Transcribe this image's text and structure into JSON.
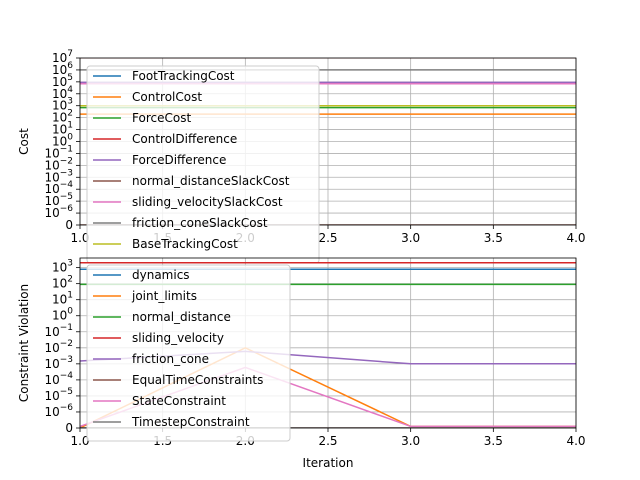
{
  "chart_data": [
    {
      "type": "line",
      "ylabel": "Cost",
      "xlabel": "",
      "xlim": [
        1.0,
        4.0
      ],
      "yscale": "symlog",
      "linthresh": 1e-06,
      "ylim_exp": [
        -6,
        7
      ],
      "x_ticks": [
        "1.0",
        "1.5",
        "2.0",
        "2.5",
        "3.0",
        "3.5",
        "4.0"
      ],
      "y_ticks": [
        "0",
        "10^-6",
        "10^-5",
        "10^-4",
        "10^-3",
        "10^-2",
        "10^-1",
        "10^0",
        "10^1",
        "10^2",
        "10^3",
        "10^4",
        "10^5",
        "10^6",
        "10^7"
      ],
      "grid": true,
      "legend_position": "upper-left",
      "x": [
        1,
        2,
        3,
        4
      ],
      "series": [
        {
          "name": "FootTrackingCost",
          "color": "#1f77b4",
          "values": [
            80000,
            80000,
            80000,
            80000
          ]
        },
        {
          "name": "ControlCost",
          "color": "#ff7f0e",
          "values": [
            200,
            200,
            200,
            200
          ]
        },
        {
          "name": "ForceCost",
          "color": "#2ca02c",
          "values": [
            700,
            700,
            700,
            700
          ]
        },
        {
          "name": "ControlDifference",
          "color": "#d62728",
          "values": [
            11000000.0,
            11000000.0,
            11000000.0,
            11000000.0
          ]
        },
        {
          "name": "ForceDifference",
          "color": "#9467bd",
          "values": [
            90000,
            90000,
            90000,
            90000
          ]
        },
        {
          "name": "normal_distanceSlackCost",
          "color": "#8c564b",
          "values": [
            0,
            0,
            0,
            0
          ]
        },
        {
          "name": "sliding_velocitySlackCost",
          "color": "#e377c2",
          "values": [
            70000,
            70000,
            70000,
            70000
          ]
        },
        {
          "name": "friction_coneSlackCost",
          "color": "#7f7f7f",
          "values": [
            1000000,
            1000000,
            1000000,
            1000000
          ]
        },
        {
          "name": "BaseTrackingCost",
          "color": "#bcbd22",
          "values": [
            1000,
            1000,
            1000,
            1000
          ]
        }
      ]
    },
    {
      "type": "line",
      "ylabel": "Constraint Violation",
      "xlabel": "Iteration",
      "xlim": [
        1.0,
        4.0
      ],
      "yscale": "symlog",
      "linthresh": 1e-06,
      "ylim_exp": [
        -6,
        3.6
      ],
      "x_ticks": [
        "1.0",
        "1.5",
        "2.0",
        "2.5",
        "3.0",
        "3.5",
        "4.0"
      ],
      "y_ticks": [
        "0",
        "10^-6",
        "10^-5",
        "10^-4",
        "10^-3",
        "10^-2",
        "10^-1",
        "10^0",
        "10^1",
        "10^2",
        "10^3"
      ],
      "grid": true,
      "legend_position": "upper-left",
      "x": [
        1,
        2,
        3,
        4
      ],
      "series": [
        {
          "name": "dynamics",
          "color": "#1f77b4",
          "values": [
            800,
            800,
            800,
            800
          ]
        },
        {
          "name": "joint_limits",
          "color": "#ff7f0e",
          "values": [
            0,
            0.01,
            1e-07,
            1e-07
          ]
        },
        {
          "name": "normal_distance",
          "color": "#2ca02c",
          "values": [
            90,
            90,
            90,
            90
          ]
        },
        {
          "name": "sliding_velocity",
          "color": "#d62728",
          "values": [
            2000,
            2000,
            2000,
            2000
          ]
        },
        {
          "name": "friction_cone",
          "color": "#9467bd",
          "values": [
            0.0015,
            0.006,
            0.001,
            0.001
          ]
        },
        {
          "name": "EqualTimeConstraints",
          "color": "#8c564b",
          "values": [
            0,
            0,
            0,
            0
          ]
        },
        {
          "name": "StateConstraint",
          "color": "#e377c2",
          "values": [
            1e-07,
            0.0006,
            1e-07,
            1e-07
          ]
        },
        {
          "name": "TimestepConstraint",
          "color": "#7f7f7f",
          "values": [
            0,
            0,
            0,
            0
          ]
        }
      ]
    }
  ]
}
